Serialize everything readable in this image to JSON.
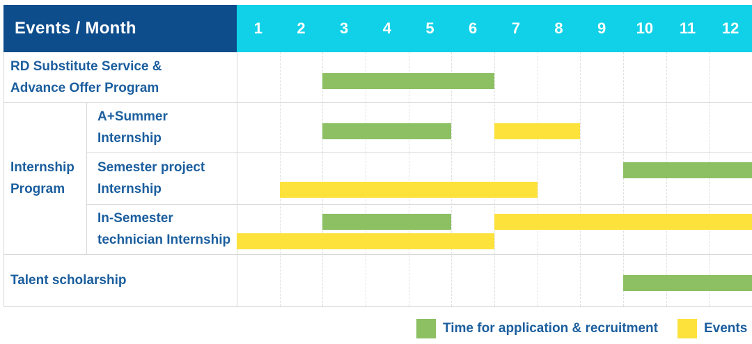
{
  "colors": {
    "header_navy": "#0e4d8c",
    "header_cyan": "#10d1e8",
    "label_blue": "#1b5e9e",
    "bar_green": "#8cc063",
    "bar_yellow": "#fde23c",
    "line_solid": "#d8d8d8",
    "line_dashed": "#dfdfdf"
  },
  "header": {
    "corner_title": "Events / Month",
    "months": [
      "1",
      "2",
      "3",
      "4",
      "5",
      "6",
      "7",
      "8",
      "9",
      "10",
      "11",
      "12"
    ]
  },
  "group_cell": {
    "label": "Internship Program",
    "lines": [
      "Internship",
      "Program"
    ]
  },
  "legend": {
    "items": [
      {
        "key": "recruitment",
        "color": "#8cc063",
        "label": "Time for application & recruitment"
      },
      {
        "key": "events",
        "color": "#fde23c",
        "label": "Events"
      }
    ]
  },
  "chart_data": {
    "type": "gantt",
    "title": "Events / Month",
    "x_unit": "month",
    "x_ticks": [
      1,
      2,
      3,
      4,
      5,
      6,
      7,
      8,
      9,
      10,
      11,
      12
    ],
    "x_range": [
      1,
      12
    ],
    "legend_position": "bottom-right",
    "series_legend": [
      {
        "name": "Time for application & recruitment",
        "color": "#8cc063"
      },
      {
        "name": "Events",
        "color": "#fde23c"
      }
    ],
    "rows": [
      {
        "label": "RD Substitute Service & Advance Offer Program",
        "label_lines": [
          "RD Substitute Service &",
          "Advance Offer Program"
        ],
        "group": null,
        "bars": [
          {
            "kind": "recruitment",
            "start_month": 3,
            "end_month": 6,
            "lane": "single"
          }
        ]
      },
      {
        "label": "A+Summer Internship",
        "label_lines": [
          "A+Summer",
          "Internship"
        ],
        "group": "Internship Program",
        "bars": [
          {
            "kind": "recruitment",
            "start_month": 3,
            "end_month": 5,
            "lane": "single"
          },
          {
            "kind": "events",
            "start_month": 7,
            "end_month": 8,
            "lane": "single"
          }
        ]
      },
      {
        "label": "Semester project Internship",
        "label_lines": [
          "Semester project",
          "Internship"
        ],
        "group": "Internship Program",
        "bars": [
          {
            "kind": "recruitment",
            "start_month": 10,
            "end_month": 12,
            "lane": "top"
          },
          {
            "kind": "events",
            "start_month": 2,
            "end_month": 7,
            "lane": "bottom"
          }
        ]
      },
      {
        "label": "In-Semester technician Internship",
        "label_lines": [
          "In-Semester",
          "technician Internship"
        ],
        "group": "Internship Program",
        "bars": [
          {
            "kind": "recruitment",
            "start_month": 3,
            "end_month": 5,
            "lane": "top"
          },
          {
            "kind": "events",
            "start_month": 7,
            "end_month": 12,
            "lane": "top"
          },
          {
            "kind": "events",
            "start_month": 1,
            "end_month": 6,
            "lane": "bottom"
          }
        ]
      },
      {
        "label": "Talent scholarship",
        "label_lines": [
          "Talent scholarship"
        ],
        "group": null,
        "bars": [
          {
            "kind": "recruitment",
            "start_month": 10,
            "end_month": 12,
            "lane": "single"
          }
        ]
      }
    ]
  }
}
